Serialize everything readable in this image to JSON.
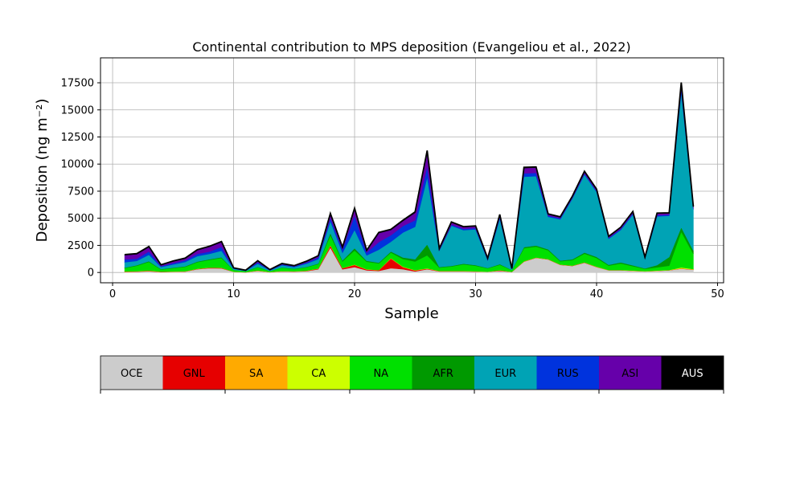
{
  "chart_data": {
    "type": "area",
    "title": "Continental contribution to MPS deposition (Evangeliou et al., 2022)",
    "xlabel": "Sample",
    "ylabel": "Deposition (ng m⁻²)",
    "xlim": [
      -1,
      50.5
    ],
    "ylim": [
      -950,
      19800
    ],
    "xticks": [
      0,
      10,
      20,
      30,
      40,
      50
    ],
    "yticks": [
      0,
      2500,
      5000,
      7500,
      10000,
      12500,
      15000,
      17500
    ],
    "ytick_labels": [
      "0",
      "2500",
      "5000",
      "7500",
      "10000",
      "12500",
      "15000",
      "17500"
    ],
    "grid": true,
    "x": [
      1,
      2,
      3,
      4,
      5,
      6,
      7,
      8,
      9,
      10,
      11,
      12,
      13,
      14,
      15,
      16,
      17,
      18,
      19,
      20,
      21,
      22,
      23,
      24,
      25,
      26,
      27,
      28,
      29,
      30,
      31,
      32,
      33,
      34,
      35,
      36,
      37,
      38,
      39,
      40,
      41,
      42,
      43,
      44,
      45,
      46,
      47,
      48
    ],
    "series": [
      {
        "name": "OCE",
        "color": "#cccccc",
        "values": [
          50,
          70,
          120,
          40,
          60,
          80,
          300,
          400,
          380,
          60,
          20,
          150,
          30,
          100,
          80,
          120,
          300,
          2300,
          300,
          500,
          200,
          150,
          400,
          300,
          100,
          300,
          100,
          100,
          100,
          80,
          60,
          150,
          50,
          1000,
          1350,
          1200,
          700,
          600,
          900,
          500,
          200,
          200,
          150,
          100,
          150,
          200,
          350,
          250
        ]
      },
      {
        "name": "GNL",
        "color": "#e60000",
        "values": [
          30,
          30,
          40,
          20,
          20,
          20,
          30,
          40,
          40,
          10,
          10,
          20,
          10,
          20,
          20,
          30,
          60,
          200,
          100,
          200,
          80,
          60,
          900,
          200,
          80,
          50,
          30,
          30,
          30,
          20,
          10,
          40,
          10,
          20,
          20,
          20,
          20,
          20,
          20,
          20,
          10,
          10,
          10,
          10,
          10,
          10,
          20,
          20
        ]
      },
      {
        "name": "SA",
        "color": "#ffaa00",
        "values": [
          10,
          10,
          10,
          10,
          10,
          10,
          10,
          10,
          10,
          5,
          5,
          10,
          5,
          10,
          10,
          10,
          10,
          20,
          10,
          20,
          10,
          10,
          20,
          20,
          20,
          20,
          10,
          10,
          10,
          10,
          5,
          10,
          5,
          10,
          10,
          10,
          10,
          10,
          10,
          10,
          10,
          10,
          10,
          10,
          10,
          10,
          20,
          10
        ]
      },
      {
        "name": "CA",
        "color": "#ccff00",
        "values": [
          10,
          10,
          10,
          10,
          10,
          10,
          10,
          10,
          10,
          5,
          5,
          10,
          5,
          10,
          10,
          10,
          10,
          20,
          10,
          20,
          10,
          10,
          20,
          20,
          20,
          20,
          10,
          10,
          10,
          10,
          5,
          10,
          5,
          10,
          10,
          10,
          10,
          10,
          10,
          10,
          10,
          10,
          10,
          10,
          10,
          10,
          80,
          40
        ]
      },
      {
        "name": "NA",
        "color": "#00e000",
        "values": [
          300,
          500,
          800,
          200,
          300,
          400,
          600,
          700,
          900,
          150,
          80,
          300,
          80,
          300,
          200,
          300,
          400,
          900,
          600,
          1300,
          700,
          600,
          500,
          700,
          800,
          1200,
          300,
          400,
          600,
          500,
          300,
          500,
          150,
          1200,
          1000,
          800,
          300,
          500,
          800,
          800,
          400,
          600,
          400,
          200,
          300,
          400,
          3300,
          1400
        ]
      },
      {
        "name": "AFR",
        "color": "#009900",
        "values": [
          50,
          50,
          60,
          30,
          40,
          50,
          60,
          60,
          70,
          20,
          10,
          30,
          10,
          30,
          30,
          40,
          50,
          200,
          100,
          200,
          80,
          80,
          100,
          150,
          200,
          1000,
          60,
          60,
          60,
          60,
          40,
          60,
          20,
          100,
          100,
          100,
          60,
          80,
          100,
          100,
          80,
          100,
          80,
          50,
          200,
          800,
          400,
          300
        ]
      },
      {
        "name": "EUR",
        "color": "#00a3b5",
        "values": [
          500,
          400,
          600,
          200,
          300,
          400,
          500,
          500,
          600,
          100,
          40,
          300,
          60,
          200,
          150,
          300,
          400,
          1100,
          700,
          1700,
          500,
          1200,
          900,
          2300,
          3000,
          6200,
          1500,
          3700,
          3100,
          3300,
          700,
          4200,
          80,
          6500,
          6400,
          3000,
          3800,
          5600,
          7200,
          6000,
          2400,
          3000,
          4700,
          900,
          4500,
          3800,
          12500,
          3800
        ]
      },
      {
        "name": "RUS",
        "color": "#0033dd",
        "values": [
          250,
          200,
          300,
          80,
          120,
          150,
          200,
          200,
          350,
          40,
          15,
          120,
          25,
          80,
          60,
          100,
          150,
          300,
          300,
          1300,
          250,
          700,
          600,
          600,
          600,
          1000,
          50,
          100,
          120,
          120,
          80,
          150,
          20,
          300,
          300,
          100,
          100,
          80,
          100,
          100,
          80,
          100,
          100,
          50,
          100,
          100,
          300,
          100
        ]
      },
      {
        "name": "ASI",
        "color": "#6600aa",
        "values": [
          400,
          420,
          400,
          100,
          180,
          180,
          350,
          450,
          440,
          30,
          20,
          130,
          40,
          60,
          50,
          90,
          130,
          350,
          180,
          620,
          180,
          830,
          480,
          470,
          690,
          1340,
          130,
          210,
          160,
          160,
          100,
          180,
          20,
          500,
          490,
          120,
          100,
          100,
          140,
          100,
          110,
          110,
          130,
          70,
          170,
          140,
          480,
          120
        ]
      },
      {
        "name": "AUS",
        "color": "#000000",
        "values": [
          50,
          50,
          60,
          20,
          20,
          30,
          40,
          50,
          60,
          10,
          5,
          20,
          5,
          20,
          20,
          30,
          40,
          60,
          40,
          70,
          40,
          60,
          60,
          60,
          80,
          120,
          20,
          40,
          40,
          40,
          20,
          50,
          5,
          60,
          60,
          40,
          40,
          40,
          60,
          50,
          30,
          40,
          40,
          20,
          30,
          30,
          80,
          40
        ]
      }
    ],
    "legend": {
      "placement": "bottom",
      "items": [
        "OCE",
        "GNL",
        "SA",
        "CA",
        "NA",
        "AFR",
        "EUR",
        "RUS",
        "ASI",
        "AUS"
      ],
      "label_colors": [
        "#000000",
        "#000000",
        "#000000",
        "#000000",
        "#000000",
        "#000000",
        "#000000",
        "#000000",
        "#000000",
        "#ffffff"
      ]
    }
  }
}
